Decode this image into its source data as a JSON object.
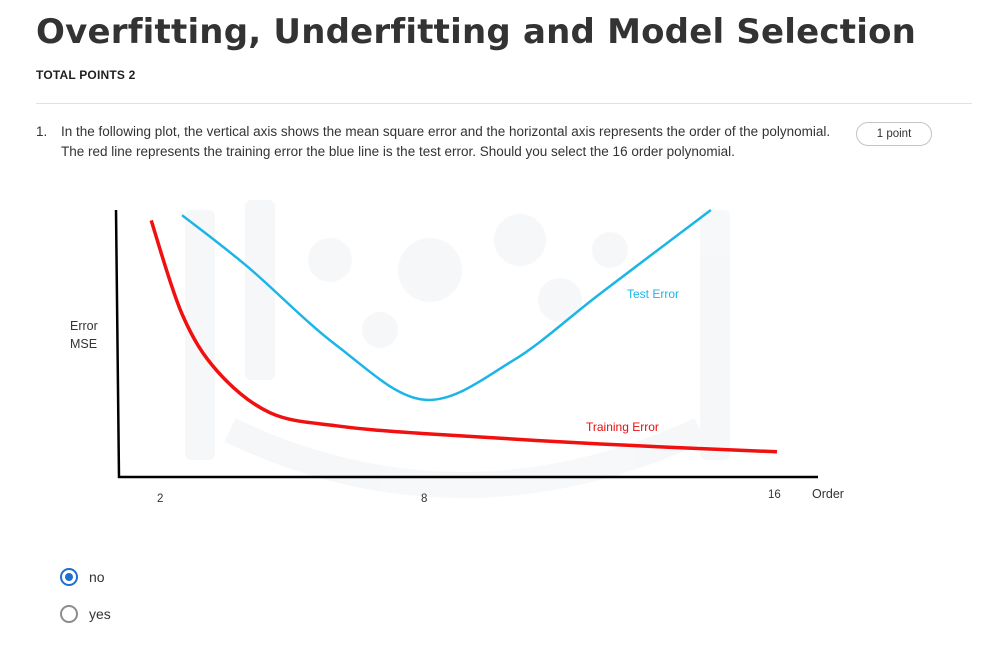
{
  "quiz": {
    "title": "Overfitting, Underfitting and Model Selection",
    "total_points": "TOTAL POINTS 2"
  },
  "question": {
    "number": "1.",
    "text": "In the following plot, the vertical axis shows the mean square error and the horizontal axis represents the order of the polynomial. The red line represents the training error the blue line is the test error. Should you select the 16 order polynomial.",
    "points": "1 point"
  },
  "chart_data": {
    "type": "line",
    "ylabel_line1": "Error",
    "ylabel_line2": "MSE",
    "xlabel": "Order",
    "x_ticks": [
      "2",
      "8",
      "16"
    ],
    "series": [
      {
        "name": "Test Error",
        "color": "#1cb5e8",
        "x": [
          2.5,
          4,
          6,
          8,
          10,
          12,
          14.5
        ],
        "y": [
          0.98,
          0.78,
          0.48,
          0.27,
          0.42,
          0.68,
          1.0
        ]
      },
      {
        "name": "Training Error",
        "color": "#f01010",
        "x": [
          1.8,
          2.5,
          3.3,
          4.5,
          6,
          8,
          12,
          16
        ],
        "y": [
          0.96,
          0.6,
          0.38,
          0.22,
          0.17,
          0.14,
          0.1,
          0.07
        ]
      }
    ]
  },
  "options": [
    {
      "label": "no",
      "selected": true
    },
    {
      "label": "yes",
      "selected": false
    }
  ]
}
